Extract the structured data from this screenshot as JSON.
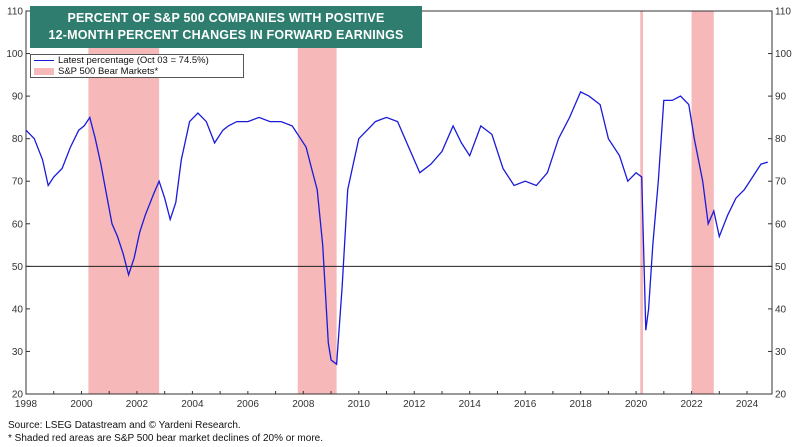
{
  "chart_data": {
    "type": "line",
    "title_line1": "PERCENT OF S&P 500 COMPANIES WITH POSITIVE",
    "title_line2": "12-MONTH PERCENT CHANGES IN FORWARD EARNINGS",
    "legend": {
      "series_label": "Latest percentage (Oct 03 = 74.5%)",
      "shade_label": "S&P 500 Bear Markets*"
    },
    "colors": {
      "line": "#1a1adb",
      "shade": "#f6b8b8",
      "title_bg": "#2e7d6e"
    },
    "xlim": [
      1998,
      2024.9
    ],
    "ylim": [
      20,
      110
    ],
    "x_ticks": [
      1998,
      2000,
      2002,
      2004,
      2006,
      2008,
      2010,
      2012,
      2014,
      2016,
      2018,
      2020,
      2022,
      2024
    ],
    "y_ticks": [
      20,
      30,
      40,
      50,
      60,
      70,
      80,
      90,
      100,
      110
    ],
    "reference_line": 50,
    "bear_markets": [
      [
        2000.25,
        2002.8
      ],
      [
        2007.8,
        2009.2
      ],
      [
        2020.15,
        2020.25
      ],
      [
        2022.0,
        2022.8
      ]
    ],
    "series": [
      {
        "x": [
          1998.0,
          1998.3,
          1998.6,
          1998.8,
          1999.0,
          1999.3,
          1999.6,
          1999.9,
          2000.1,
          2000.3,
          2000.5,
          2000.7,
          2000.9,
          2001.1,
          2001.3,
          2001.5,
          2001.7,
          2001.9,
          2002.1,
          2002.3,
          2002.6,
          2002.8,
          2003.0,
          2003.2,
          2003.4,
          2003.6,
          2003.9,
          2004.2,
          2004.5,
          2004.8,
          2005.1,
          2005.3,
          2005.6,
          2006.0,
          2006.4,
          2006.8,
          2007.2,
          2007.6,
          2007.9,
          2008.1,
          2008.3,
          2008.5,
          2008.7,
          2008.9,
          2009.0,
          2009.2,
          2009.4,
          2009.6,
          2009.8,
          2010.0,
          2010.3,
          2010.6,
          2011.0,
          2011.4,
          2011.8,
          2012.2,
          2012.6,
          2013.0,
          2013.4,
          2013.7,
          2014.0,
          2014.4,
          2014.8,
          2015.2,
          2015.6,
          2016.0,
          2016.4,
          2016.8,
          2017.2,
          2017.6,
          2018.0,
          2018.3,
          2018.7,
          2019.0,
          2019.4,
          2019.7,
          2020.0,
          2020.2,
          2020.35,
          2020.45,
          2020.6,
          2020.8,
          2021.0,
          2021.3,
          2021.6,
          2021.9,
          2022.1,
          2022.4,
          2022.6,
          2022.8,
          2023.0,
          2023.3,
          2023.6,
          2023.9,
          2024.2,
          2024.5,
          2024.75
        ],
        "values": [
          82,
          80,
          75,
          69,
          71,
          73,
          78,
          82,
          83,
          85,
          80,
          74,
          67,
          60,
          57,
          53,
          48,
          52,
          58,
          62,
          67,
          70,
          66,
          61,
          65,
          75,
          84,
          86,
          84,
          79,
          82,
          83,
          84,
          84,
          85,
          84,
          84,
          83,
          80,
          78,
          73,
          68,
          55,
          32,
          28,
          27,
          45,
          68,
          74,
          80,
          82,
          84,
          85,
          84,
          78,
          72,
          74,
          77,
          83,
          79,
          76,
          83,
          81,
          73,
          69,
          70,
          69,
          72,
          80,
          85,
          91,
          90,
          88,
          80,
          76,
          70,
          72,
          71,
          35,
          40,
          55,
          70,
          89,
          89,
          90,
          88,
          80,
          70,
          60,
          63,
          57,
          62,
          66,
          68,
          71,
          74,
          74.5
        ]
      }
    ],
    "footnotes": [
      "Source: LSEG Datastream and © Yardeni Research.",
      "* Shaded red areas are S&P 500 bear market declines of 20% or more."
    ]
  }
}
